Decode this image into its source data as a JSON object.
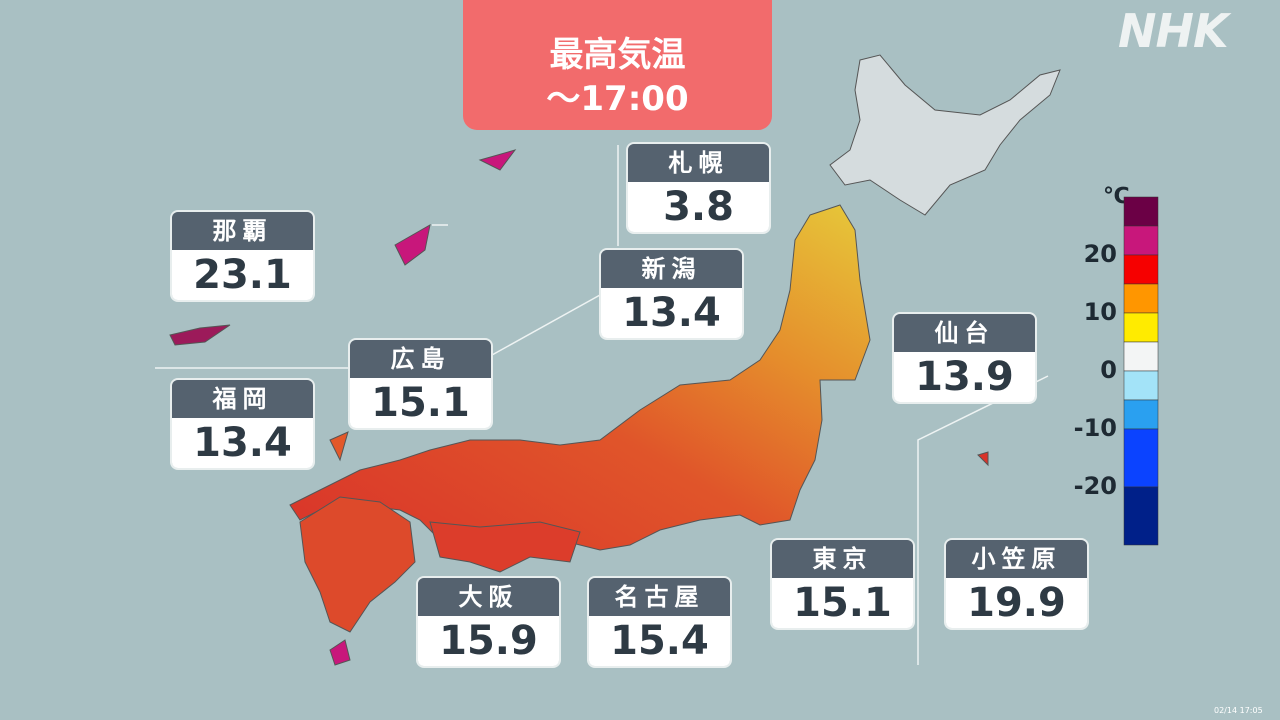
{
  "header": {
    "title": "最高気温",
    "time": "～17:00"
  },
  "logo": "NHK",
  "cities": [
    {
      "name": "那覇",
      "temp": 23.1
    },
    {
      "name": "福岡",
      "temp": 13.4
    },
    {
      "name": "広島",
      "temp": 15.1
    },
    {
      "name": "新潟",
      "temp": 13.4
    },
    {
      "name": "札幌",
      "temp": 3.8
    },
    {
      "name": "仙台",
      "temp": 13.9
    },
    {
      "name": "大阪",
      "temp": 15.9
    },
    {
      "name": "名古屋",
      "temp": 15.4
    },
    {
      "name": "東京",
      "temp": 15.1
    },
    {
      "name": "小笠原",
      "temp": 19.9
    }
  ],
  "legend": {
    "unit": "℃",
    "ticks": [
      20,
      10,
      0,
      -10,
      -20
    ],
    "colors": [
      "#6b0045",
      "#c8177b",
      "#f60000",
      "#ff9600",
      "#ffeb00",
      "#f3f5f5",
      "#a3e3f8",
      "#2aa0f0",
      "#0b43ff",
      "#002089"
    ]
  },
  "timestamp": "02/14 17:05"
}
